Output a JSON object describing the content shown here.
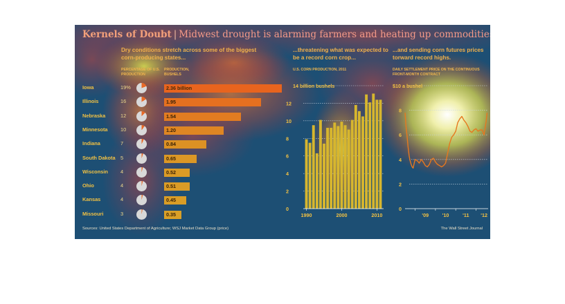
{
  "header": {
    "title": "Kernels of Doubt",
    "separator": "|",
    "subtitle": "Midwest drought is alarming farmers and heating up commodities markets"
  },
  "colors": {
    "background": "#1d4f74",
    "accent_orange": "#e8671b",
    "accent_yellow": "#d6b52a",
    "text_gold": "#f2c143"
  },
  "panels": {
    "states_heading": "Dry conditions stretch across some of the biggest corn-producing states...",
    "pct_col_heading": "Percentage of U.S. production",
    "prod_col_heading": "Production, bushels",
    "crop_heading": "...threatening what was expected to be a record corn crop...",
    "crop_subheading": "U.S. corn production, 2011",
    "prices_heading": "...and sending corn futures prices torward record highs.",
    "prices_subheading": "Daily settlement price on the continuous front-month contract"
  },
  "footer": {
    "source": "Sources: United States Department of Agriculture; WSJ Market Data Group (price)",
    "credit": "The Wall Street Journal"
  },
  "chart_data": [
    {
      "type": "bar",
      "orientation": "horizontal",
      "categories": [
        "Iowa",
        "Illinois",
        "Nebraska",
        "Minnesota",
        "Indiana",
        "South Dakota",
        "Wisconsin",
        "Ohio",
        "Kansas",
        "Missouri"
      ],
      "percent_labels": [
        "19%",
        "16",
        "12",
        "10",
        "7",
        "5",
        "4",
        "4",
        "4",
        "3"
      ],
      "percent_values": [
        19,
        16,
        12,
        10,
        7,
        5,
        4,
        4,
        4,
        3
      ],
      "values": [
        2.36,
        1.95,
        1.54,
        1.2,
        0.84,
        0.65,
        0.52,
        0.51,
        0.45,
        0.35
      ],
      "value_labels": [
        "2.36 billion",
        "1.95",
        "1.54",
        "1.20",
        "0.84",
        "0.65",
        "0.52",
        "0.51",
        "0.45",
        "0.35"
      ]
    },
    {
      "type": "bar",
      "x": [
        1990,
        1991,
        1992,
        1993,
        1994,
        1995,
        1996,
        1997,
        1998,
        1999,
        2000,
        2001,
        2002,
        2003,
        2004,
        2005,
        2006,
        2007,
        2008,
        2009,
        2010,
        2011
      ],
      "values": [
        7.9,
        7.5,
        9.5,
        6.3,
        10.1,
        7.4,
        9.2,
        9.2,
        9.8,
        9.4,
        9.9,
        9.5,
        9.0,
        10.1,
        11.8,
        11.1,
        10.5,
        13.0,
        12.1,
        13.1,
        12.4,
        12.4
      ],
      "ylim": [
        0,
        14
      ],
      "ytick_labels": [
        "0",
        "2",
        "4",
        "6",
        "8",
        "10",
        "12",
        "14 billion bushels"
      ],
      "xtick_labels": [
        "1990",
        "2000",
        "2010"
      ]
    },
    {
      "type": "line",
      "x": [
        2008.5,
        2008.55,
        2008.6,
        2008.65,
        2008.7,
        2008.75,
        2008.8,
        2008.85,
        2008.9,
        2008.95,
        2009.0,
        2009.1,
        2009.2,
        2009.3,
        2009.4,
        2009.5,
        2009.6,
        2009.7,
        2009.8,
        2009.9,
        2010.0,
        2010.1,
        2010.2,
        2010.3,
        2010.4,
        2010.5,
        2010.6,
        2010.7,
        2010.8,
        2010.9,
        2011.0,
        2011.1,
        2011.2,
        2011.3,
        2011.4,
        2011.5,
        2011.6,
        2011.7,
        2011.8,
        2011.9,
        2012.0,
        2012.1,
        2012.2,
        2012.3,
        2012.4,
        2012.5,
        2012.55
      ],
      "values": [
        7.8,
        6.6,
        5.9,
        5.0,
        4.3,
        3.9,
        3.6,
        3.4,
        3.3,
        3.7,
        4.0,
        3.9,
        3.7,
        4.0,
        3.8,
        3.5,
        3.4,
        3.6,
        4.0,
        4.1,
        3.8,
        3.6,
        3.5,
        3.4,
        3.5,
        3.7,
        4.5,
        5.3,
        5.8,
        6.0,
        6.3,
        7.0,
        7.3,
        7.5,
        7.2,
        7.0,
        6.7,
        6.3,
        6.2,
        6.4,
        6.5,
        6.3,
        6.4,
        6.4,
        6.0,
        7.1,
        7.8
      ],
      "ylim": [
        0,
        10
      ],
      "ytick_labels": [
        "0",
        "2",
        "4",
        "6",
        "8",
        "$10 a bushel"
      ],
      "xtick_labels": [
        "'09",
        "'10",
        "'11",
        "'12"
      ]
    }
  ]
}
